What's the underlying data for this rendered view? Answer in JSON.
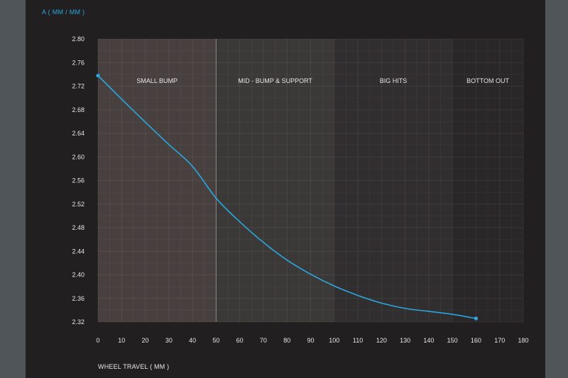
{
  "chart_data": {
    "type": "line",
    "title": "",
    "ylabel": "A ( MM / MM )",
    "xlabel": "WHEEL TRAVEL ( MM )",
    "xlim": [
      0,
      180
    ],
    "ylim": [
      2.32,
      2.8
    ],
    "xticks": [
      0,
      10,
      20,
      30,
      40,
      50,
      60,
      70,
      80,
      90,
      100,
      110,
      120,
      130,
      140,
      150,
      160,
      170,
      180
    ],
    "yticks": [
      "2.80",
      "2.76",
      "2.72",
      "2.68",
      "2.64",
      "2.60",
      "2.56",
      "2.52",
      "2.48",
      "2.44",
      "2.40",
      "2.36",
      "2.32"
    ],
    "grid": true,
    "line_color": "#2aa7de",
    "zones": [
      {
        "label": "SMALL BUMP",
        "x_start": 0,
        "x_end": 50,
        "color": "#47403f"
      },
      {
        "label": "MID - BUMP & SUPPORT",
        "x_start": 50,
        "x_end": 100,
        "color": "#3b3838"
      },
      {
        "label": "BIG HITS",
        "x_start": 100,
        "x_end": 150,
        "color": "#312e2f"
      },
      {
        "label": "BOTTOM OUT",
        "x_start": 150,
        "x_end": 180,
        "color": "#2a2728"
      }
    ],
    "series": [
      {
        "x": [
          0,
          10,
          20,
          30,
          40,
          50,
          60,
          70,
          80,
          90,
          100,
          110,
          120,
          130,
          140,
          150,
          160
        ],
        "y": [
          2.738,
          2.698,
          2.659,
          2.621,
          2.584,
          2.53,
          2.49,
          2.455,
          2.425,
          2.401,
          2.381,
          2.365,
          2.352,
          2.343,
          2.338,
          2.333,
          2.326
        ]
      }
    ]
  }
}
